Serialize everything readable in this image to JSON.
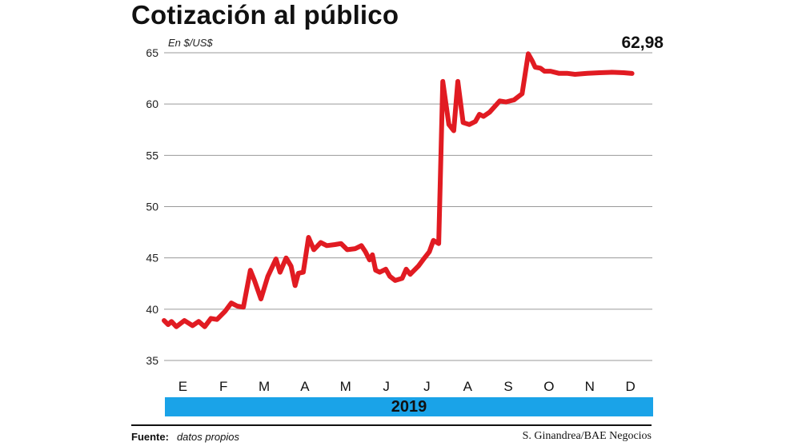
{
  "title": "Cotización al público",
  "unit_label": "En $/US$",
  "last_value_label": "62,98",
  "year_label": "2019",
  "footer": {
    "source_label": "Fuente:",
    "source_value": "datos propios",
    "credit": "S. Ginandrea/BAE Negocios"
  },
  "colors": {
    "line": "#e11b22",
    "year_band": "#1aa3e8",
    "grid": "#9a9a9a"
  },
  "chart_data": {
    "type": "line",
    "title": "Cotización al público",
    "ylabel": "En $/US$",
    "xlabel": "",
    "ylim": [
      35,
      65
    ],
    "yticks": [
      35,
      40,
      45,
      50,
      55,
      60,
      65
    ],
    "x_range": [
      0,
      12
    ],
    "categories": [
      "E",
      "F",
      "M",
      "A",
      "M",
      "J",
      "J",
      "A",
      "S",
      "O",
      "N",
      "D"
    ],
    "grid": true,
    "series": [
      {
        "name": "",
        "points": [
          [
            0.0,
            38.9
          ],
          [
            0.1,
            38.5
          ],
          [
            0.18,
            38.8
          ],
          [
            0.3,
            38.3
          ],
          [
            0.5,
            38.9
          ],
          [
            0.7,
            38.4
          ],
          [
            0.85,
            38.8
          ],
          [
            1.0,
            38.3
          ],
          [
            1.15,
            39.1
          ],
          [
            1.3,
            39.0
          ],
          [
            1.5,
            39.8
          ],
          [
            1.65,
            40.6
          ],
          [
            1.8,
            40.3
          ],
          [
            1.95,
            40.2
          ],
          [
            2.12,
            43.8
          ],
          [
            2.22,
            42.8
          ],
          [
            2.38,
            41.0
          ],
          [
            2.55,
            43.2
          ],
          [
            2.75,
            44.9
          ],
          [
            2.85,
            43.6
          ],
          [
            3.0,
            45.0
          ],
          [
            3.12,
            44.2
          ],
          [
            3.22,
            42.3
          ],
          [
            3.3,
            43.5
          ],
          [
            3.42,
            43.6
          ],
          [
            3.55,
            47.0
          ],
          [
            3.68,
            45.8
          ],
          [
            3.85,
            46.5
          ],
          [
            4.0,
            46.2
          ],
          [
            4.2,
            46.3
          ],
          [
            4.35,
            46.4
          ],
          [
            4.5,
            45.8
          ],
          [
            4.7,
            45.9
          ],
          [
            4.85,
            46.2
          ],
          [
            4.95,
            45.6
          ],
          [
            5.05,
            44.8
          ],
          [
            5.12,
            45.3
          ],
          [
            5.2,
            43.8
          ],
          [
            5.3,
            43.6
          ],
          [
            5.45,
            43.9
          ],
          [
            5.55,
            43.2
          ],
          [
            5.68,
            42.8
          ],
          [
            5.85,
            43.0
          ],
          [
            5.95,
            43.9
          ],
          [
            6.05,
            43.4
          ],
          [
            6.25,
            44.2
          ],
          [
            6.4,
            45.0
          ],
          [
            6.52,
            45.6
          ],
          [
            6.62,
            46.7
          ],
          [
            6.75,
            46.4
          ],
          [
            6.85,
            62.2
          ],
          [
            7.0,
            58.0
          ],
          [
            7.12,
            57.4
          ],
          [
            7.22,
            62.2
          ],
          [
            7.35,
            58.2
          ],
          [
            7.5,
            58.0
          ],
          [
            7.65,
            58.3
          ],
          [
            7.75,
            59.0
          ],
          [
            7.85,
            58.8
          ],
          [
            8.0,
            59.2
          ],
          [
            8.25,
            60.3
          ],
          [
            8.4,
            60.2
          ],
          [
            8.6,
            60.4
          ],
          [
            8.8,
            61.0
          ],
          [
            8.95,
            64.9
          ],
          [
            9.05,
            64.2
          ],
          [
            9.12,
            63.6
          ],
          [
            9.25,
            63.5
          ],
          [
            9.35,
            63.2
          ],
          [
            9.5,
            63.2
          ],
          [
            9.7,
            63.0
          ],
          [
            9.9,
            63.0
          ],
          [
            10.1,
            62.9
          ],
          [
            10.4,
            63.0
          ],
          [
            10.7,
            63.05
          ],
          [
            11.0,
            63.1
          ],
          [
            11.3,
            63.05
          ],
          [
            11.5,
            62.98
          ]
        ]
      }
    ],
    "last_value": 62.98
  }
}
